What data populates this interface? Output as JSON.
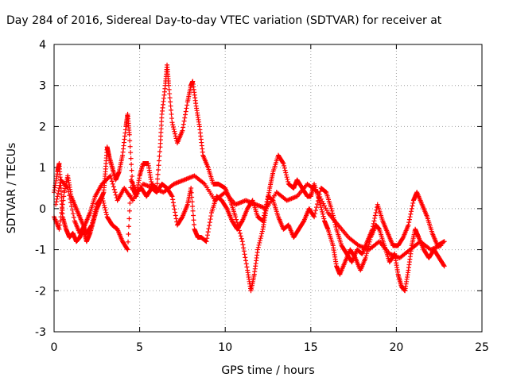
{
  "chart_data": {
    "type": "scatter",
    "title": "Day 284 of 2016, Sidereal Day-to-day VTEC variation (SDTVAR) for receiver at",
    "xlabel": "GPS time / hours",
    "ylabel": "SDTVAR / TECUs",
    "xlim": [
      0,
      25
    ],
    "ylim": [
      -3,
      4
    ],
    "xticks": [
      0,
      5,
      10,
      15,
      20,
      25
    ],
    "yticks": [
      -3,
      -2,
      -1,
      0,
      1,
      2,
      3,
      4
    ],
    "grid": true,
    "marker": "+",
    "color": "#ff0000",
    "series": [
      {
        "name": "SDTVAR",
        "tracks": [
          [
            [
              0.0,
              0.4
            ],
            [
              0.2,
              0.9
            ],
            [
              0.3,
              1.1
            ],
            [
              0.4,
              0.5
            ],
            [
              0.5,
              -0.2
            ],
            [
              0.7,
              -0.5
            ],
            [
              0.9,
              -0.7
            ],
            [
              1.1,
              -0.6
            ],
            [
              1.3,
              -0.8
            ],
            [
              1.5,
              -0.7
            ],
            [
              1.7,
              -0.5
            ],
            [
              1.9,
              -0.8
            ],
            [
              2.1,
              -0.6
            ],
            [
              2.3,
              -0.3
            ],
            [
              2.5,
              0.0
            ],
            [
              2.7,
              0.2
            ],
            [
              2.9,
              0.4
            ],
            [
              3.0,
              0.9
            ],
            [
              3.1,
              1.5
            ],
            [
              3.2,
              1.3
            ],
            [
              3.4,
              1.0
            ],
            [
              3.6,
              0.7
            ],
            [
              3.8,
              0.9
            ],
            [
              4.0,
              1.3
            ],
            [
              4.2,
              2.0
            ],
            [
              4.3,
              2.3
            ],
            [
              4.4,
              1.8
            ],
            [
              4.6,
              0.5
            ],
            [
              4.8,
              0.3
            ],
            [
              5.0,
              0.8
            ],
            [
              5.2,
              1.1
            ],
            [
              5.5,
              1.1
            ],
            [
              5.7,
              0.6
            ],
            [
              6.0,
              0.5
            ],
            [
              6.2,
              1.5
            ],
            [
              6.3,
              2.3
            ],
            [
              6.5,
              3.0
            ],
            [
              6.6,
              3.5
            ],
            [
              6.7,
              3.0
            ],
            [
              6.9,
              2.1
            ],
            [
              7.2,
              1.6
            ],
            [
              7.5,
              1.9
            ],
            [
              7.8,
              2.6
            ],
            [
              8.0,
              3.0
            ],
            [
              8.1,
              3.1
            ],
            [
              8.3,
              2.5
            ],
            [
              8.5,
              2.0
            ],
            [
              8.7,
              1.3
            ],
            [
              9.0,
              1.0
            ],
            [
              9.3,
              0.6
            ],
            [
              9.6,
              0.6
            ],
            [
              10.0,
              0.5
            ],
            [
              10.3,
              0.2
            ],
            [
              10.6,
              -0.2
            ],
            [
              11.0,
              -0.8
            ],
            [
              11.3,
              -1.5
            ],
            [
              11.5,
              -2.0
            ],
            [
              11.7,
              -1.6
            ],
            [
              11.9,
              -1.0
            ],
            [
              12.2,
              -0.5
            ],
            [
              12.4,
              0.0
            ],
            [
              12.6,
              0.5
            ],
            [
              12.8,
              0.9
            ],
            [
              13.1,
              1.3
            ],
            [
              13.4,
              1.1
            ],
            [
              13.7,
              0.6
            ],
            [
              14.0,
              0.5
            ],
            [
              14.2,
              0.7
            ],
            [
              14.5,
              0.5
            ],
            [
              14.8,
              0.3
            ],
            [
              15.0,
              0.3
            ],
            [
              15.2,
              0.6
            ],
            [
              15.5,
              0.2
            ],
            [
              15.8,
              -0.3
            ],
            [
              16.0,
              -0.5
            ],
            [
              16.3,
              -0.9
            ],
            [
              16.5,
              -1.4
            ],
            [
              16.7,
              -1.6
            ],
            [
              17.0,
              -1.3
            ],
            [
              17.3,
              -1.0
            ],
            [
              17.6,
              -1.2
            ],
            [
              17.9,
              -1.5
            ],
            [
              18.2,
              -1.2
            ],
            [
              18.5,
              -0.7
            ],
            [
              18.8,
              -0.4
            ],
            [
              19.0,
              -0.5
            ],
            [
              19.3,
              -0.9
            ],
            [
              19.6,
              -1.3
            ],
            [
              19.9,
              -1.1
            ],
            [
              20.1,
              -1.6
            ],
            [
              20.3,
              -1.9
            ],
            [
              20.5,
              -2.0
            ],
            [
              20.7,
              -1.5
            ],
            [
              20.9,
              -0.9
            ],
            [
              21.1,
              -0.5
            ],
            [
              21.3,
              -0.7
            ],
            [
              21.6,
              -1.0
            ],
            [
              21.9,
              -1.2
            ],
            [
              22.2,
              -1.0
            ],
            [
              22.5,
              -1.2
            ],
            [
              22.8,
              -1.4
            ]
          ],
          [
            [
              0.0,
              -0.2
            ],
            [
              0.3,
              -0.5
            ],
            [
              0.6,
              0.4
            ],
            [
              0.8,
              0.8
            ],
            [
              1.0,
              0.3
            ],
            [
              1.3,
              0.0
            ],
            [
              1.6,
              -0.3
            ],
            [
              1.9,
              -0.6
            ],
            [
              2.2,
              -0.4
            ],
            [
              2.5,
              0.1
            ],
            [
              2.8,
              0.3
            ],
            [
              3.1,
              -0.2
            ],
            [
              3.4,
              -0.4
            ],
            [
              3.7,
              -0.5
            ],
            [
              4.0,
              -0.8
            ],
            [
              4.3,
              -1.0
            ],
            [
              4.5,
              0.7
            ],
            [
              4.8,
              0.4
            ],
            [
              5.1,
              0.5
            ],
            [
              5.4,
              0.3
            ],
            [
              5.7,
              0.5
            ],
            [
              6.0,
              0.4
            ],
            [
              6.3,
              0.6
            ],
            [
              6.6,
              0.5
            ],
            [
              6.9,
              0.3
            ],
            [
              7.2,
              -0.4
            ],
            [
              7.5,
              -0.2
            ],
            [
              7.8,
              0.1
            ],
            [
              8.0,
              0.5
            ],
            [
              8.2,
              -0.5
            ],
            [
              8.4,
              -0.7
            ],
            [
              8.6,
              -0.7
            ],
            [
              8.9,
              -0.8
            ],
            [
              9.2,
              -0.1
            ],
            [
              9.5,
              0.3
            ],
            [
              9.8,
              0.2
            ],
            [
              10.1,
              0.0
            ],
            [
              10.4,
              -0.3
            ],
            [
              10.7,
              -0.5
            ],
            [
              11.0,
              -0.3
            ],
            [
              11.3,
              0.0
            ],
            [
              11.6,
              0.2
            ],
            [
              11.9,
              -0.2
            ],
            [
              12.2,
              -0.3
            ],
            [
              12.5,
              0.3
            ],
            [
              12.8,
              0.2
            ],
            [
              13.1,
              -0.2
            ],
            [
              13.4,
              -0.5
            ],
            [
              13.7,
              -0.4
            ],
            [
              14.0,
              -0.7
            ],
            [
              14.3,
              -0.5
            ],
            [
              14.6,
              -0.3
            ],
            [
              14.9,
              0.0
            ],
            [
              15.2,
              -0.2
            ],
            [
              15.6,
              0.5
            ],
            [
              15.9,
              0.4
            ],
            [
              16.2,
              0.0
            ],
            [
              16.5,
              -0.5
            ],
            [
              16.8,
              -0.9
            ],
            [
              17.1,
              -1.1
            ],
            [
              17.4,
              -1.3
            ],
            [
              17.7,
              -1.0
            ],
            [
              18.0,
              -1.1
            ],
            [
              18.3,
              -0.8
            ],
            [
              18.6,
              -0.5
            ],
            [
              18.9,
              0.1
            ],
            [
              19.2,
              -0.3
            ],
            [
              19.5,
              -0.6
            ],
            [
              19.8,
              -0.9
            ],
            [
              20.1,
              -0.9
            ],
            [
              20.4,
              -0.7
            ],
            [
              20.7,
              -0.4
            ],
            [
              21.0,
              0.2
            ],
            [
              21.2,
              0.4
            ],
            [
              21.5,
              0.1
            ],
            [
              21.8,
              -0.2
            ],
            [
              22.1,
              -0.6
            ],
            [
              22.4,
              -0.9
            ],
            [
              22.8,
              -0.8
            ]
          ],
          [
            [
              0.1,
              0.1
            ],
            [
              0.4,
              0.7
            ],
            [
              0.8,
              0.5
            ],
            [
              1.2,
              -0.3
            ],
            [
              1.5,
              -0.6
            ],
            [
              1.8,
              -0.4
            ],
            [
              2.1,
              -0.1
            ],
            [
              2.4,
              0.3
            ],
            [
              2.8,
              0.6
            ],
            [
              3.3,
              0.8
            ],
            [
              3.7,
              0.2
            ],
            [
              4.1,
              0.5
            ],
            [
              4.6,
              0.2
            ],
            [
              5.2,
              0.6
            ],
            [
              5.8,
              0.5
            ],
            [
              6.4,
              0.4
            ],
            [
              7.0,
              0.6
            ],
            [
              7.6,
              0.7
            ],
            [
              8.2,
              0.8
            ],
            [
              8.8,
              0.6
            ],
            [
              9.4,
              0.2
            ],
            [
              10.0,
              0.4
            ],
            [
              10.6,
              0.1
            ],
            [
              11.2,
              0.2
            ],
            [
              11.8,
              0.1
            ],
            [
              12.4,
              0.0
            ],
            [
              13.0,
              0.4
            ],
            [
              13.6,
              0.2
            ],
            [
              14.2,
              0.3
            ],
            [
              14.8,
              0.6
            ],
            [
              15.4,
              0.4
            ],
            [
              16.0,
              -0.1
            ],
            [
              16.6,
              -0.4
            ],
            [
              17.2,
              -0.7
            ],
            [
              17.8,
              -0.9
            ],
            [
              18.4,
              -1.0
            ],
            [
              19.0,
              -0.8
            ],
            [
              19.6,
              -1.1
            ],
            [
              20.2,
              -1.2
            ],
            [
              20.8,
              -1.0
            ],
            [
              21.4,
              -0.8
            ],
            [
              22.0,
              -1.0
            ],
            [
              22.6,
              -0.9
            ]
          ]
        ]
      }
    ]
  }
}
